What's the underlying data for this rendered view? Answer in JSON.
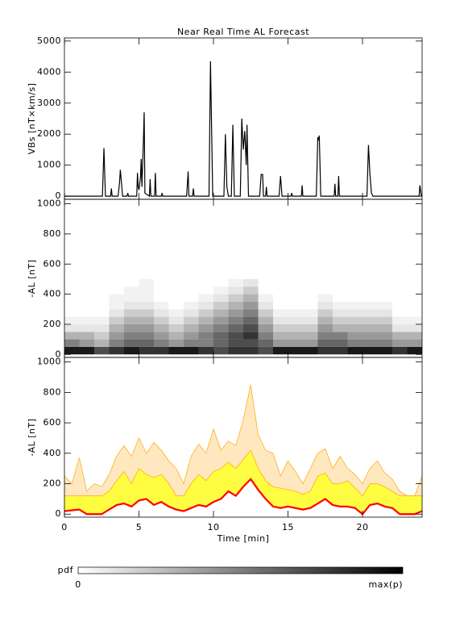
{
  "chart_data": [
    {
      "type": "line",
      "title": "Near Real Time AL Forecast",
      "ylabel": "VBs [nT×km/s]",
      "color": "#000000",
      "xlim": [
        0,
        24
      ],
      "xticks": [
        0,
        5,
        10,
        15,
        20
      ],
      "show_xtick_labels": false,
      "ylim": [
        -100,
        5100
      ],
      "yticks": [
        0,
        1000,
        2000,
        3000,
        4000,
        5000
      ],
      "x": [
        0,
        2.55,
        2.65,
        2.75,
        3.1,
        3.15,
        3.2,
        3.6,
        3.7,
        3.75,
        3.85,
        3.9,
        4.2,
        4.25,
        4.3,
        4.85,
        4.9,
        4.95,
        5.0,
        5.1,
        5.15,
        5.2,
        5.3,
        5.35,
        5.4,
        5.7,
        5.75,
        5.8,
        6.05,
        6.1,
        6.15,
        6.5,
        6.55,
        6.6,
        8.2,
        8.3,
        8.35,
        8.6,
        8.65,
        8.7,
        9.7,
        9.8,
        9.95,
        10.7,
        10.8,
        10.9,
        11.0,
        11.2,
        11.3,
        11.4,
        11.8,
        11.9,
        12.0,
        12.1,
        12.2,
        12.25,
        12.35,
        13.1,
        13.2,
        13.3,
        13.35,
        13.5,
        13.55,
        13.6,
        14.4,
        14.5,
        14.6,
        15.2,
        15.25,
        15.3,
        15.9,
        15.95,
        16.0,
        16.9,
        17.0,
        17.05,
        17.1,
        17.2,
        18.1,
        18.15,
        18.2,
        18.35,
        18.4,
        18.45,
        20.3,
        20.4,
        20.5,
        20.6,
        20.7,
        23.8,
        23.85,
        23.95,
        24
      ],
      "values": [
        0,
        0,
        1550,
        0,
        0,
        250,
        0,
        0,
        450,
        850,
        300,
        0,
        0,
        100,
        0,
        0,
        750,
        300,
        200,
        600,
        1200,
        300,
        1800,
        2700,
        100,
        0,
        550,
        0,
        0,
        750,
        0,
        0,
        100,
        0,
        0,
        800,
        0,
        0,
        250,
        0,
        0,
        4350,
        0,
        0,
        2000,
        300,
        0,
        0,
        2300,
        0,
        0,
        2500,
        1500,
        2100,
        1000,
        2300,
        0,
        0,
        700,
        700,
        0,
        0,
        300,
        0,
        0,
        650,
        0,
        0,
        100,
        0,
        0,
        350,
        0,
        0,
        1900,
        1800,
        1950,
        0,
        0,
        400,
        0,
        0,
        650,
        0,
        0,
        1650,
        700,
        100,
        0,
        0,
        350,
        0,
        0
      ]
    },
    {
      "type": "heatmap",
      "ylabel": "-AL [nT]",
      "xlim": [
        0,
        24
      ],
      "xticks": [
        0,
        5,
        10,
        15,
        20
      ],
      "show_xtick_labels": false,
      "ylim": [
        -20,
        1030
      ],
      "yticks": [
        0,
        200,
        400,
        600,
        800,
        1000
      ],
      "xbins": [
        0,
        1,
        2,
        3,
        4,
        5,
        6,
        7,
        8,
        9,
        10,
        11,
        12,
        13,
        14,
        15,
        16,
        17,
        18,
        19,
        20,
        21,
        22,
        23,
        24
      ],
      "ybins": [
        0,
        50,
        100,
        150,
        200,
        250,
        300,
        350,
        400,
        450,
        500
      ],
      "pdf": [
        [
          0.9,
          0.9,
          0.7,
          0.8,
          0.9,
          0.8,
          0.8,
          0.9,
          0.9,
          0.8,
          0.7,
          0.8,
          0.8,
          0.7,
          0.9,
          0.9,
          0.9,
          0.8,
          0.8,
          0.9,
          0.9,
          0.9,
          0.8,
          0.9
        ],
        [
          0.5,
          0.4,
          0.3,
          0.5,
          0.6,
          0.6,
          0.5,
          0.4,
          0.5,
          0.5,
          0.6,
          0.7,
          0.7,
          0.6,
          0.4,
          0.4,
          0.4,
          0.6,
          0.6,
          0.5,
          0.5,
          0.5,
          0.4,
          0.4
        ],
        [
          0.3,
          0.3,
          0.2,
          0.4,
          0.5,
          0.5,
          0.4,
          0.3,
          0.4,
          0.5,
          0.6,
          0.7,
          0.8,
          0.5,
          0.3,
          0.3,
          0.3,
          0.5,
          0.5,
          0.4,
          0.4,
          0.4,
          0.3,
          0.3
        ],
        [
          0.1,
          0.1,
          0.1,
          0.3,
          0.4,
          0.4,
          0.3,
          0.2,
          0.3,
          0.4,
          0.5,
          0.6,
          0.7,
          0.4,
          0.2,
          0.2,
          0.2,
          0.4,
          0.3,
          0.3,
          0.3,
          0.3,
          0.1,
          0.1
        ],
        [
          0.05,
          0.05,
          0.05,
          0.2,
          0.3,
          0.3,
          0.2,
          0.1,
          0.2,
          0.3,
          0.4,
          0.5,
          0.6,
          0.3,
          0.1,
          0.1,
          0.1,
          0.3,
          0.2,
          0.2,
          0.2,
          0.2,
          0.05,
          0.05
        ],
        [
          0,
          0,
          0,
          0.1,
          0.2,
          0.2,
          0.1,
          0.05,
          0.1,
          0.2,
          0.3,
          0.4,
          0.5,
          0.2,
          0.05,
          0.05,
          0.05,
          0.2,
          0.1,
          0.1,
          0.1,
          0.1,
          0,
          0
        ],
        [
          0,
          0,
          0,
          0.05,
          0.1,
          0.1,
          0.05,
          0,
          0.05,
          0.1,
          0.2,
          0.3,
          0.4,
          0.1,
          0,
          0,
          0,
          0.1,
          0.05,
          0.05,
          0.05,
          0.05,
          0,
          0
        ],
        [
          0,
          0,
          0,
          0.05,
          0.05,
          0.05,
          0,
          0,
          0,
          0.05,
          0.1,
          0.2,
          0.3,
          0.05,
          0,
          0,
          0,
          0.05,
          0,
          0,
          0,
          0,
          0,
          0
        ],
        [
          0,
          0,
          0,
          0,
          0.05,
          0.05,
          0,
          0,
          0,
          0,
          0.05,
          0.1,
          0.2,
          0,
          0,
          0,
          0,
          0,
          0,
          0,
          0,
          0,
          0,
          0
        ],
        [
          0,
          0,
          0,
          0,
          0,
          0.05,
          0,
          0,
          0,
          0,
          0,
          0.05,
          0.1,
          0,
          0,
          0,
          0,
          0,
          0,
          0,
          0,
          0,
          0,
          0
        ]
      ]
    },
    {
      "type": "band",
      "ylabel": "-AL [nT]",
      "xlabel": "Time [min]",
      "xlim": [
        0,
        24
      ],
      "xticks": [
        0,
        5,
        10,
        15,
        20
      ],
      "show_xtick_labels": true,
      "ylim": [
        -20,
        1030
      ],
      "yticks": [
        0,
        200,
        400,
        600,
        800,
        1000
      ],
      "x": [
        0,
        0.5,
        1,
        1.5,
        2,
        2.5,
        3,
        3.5,
        4,
        4.5,
        5,
        5.5,
        6,
        6.5,
        7,
        7.5,
        8,
        8.5,
        9,
        9.5,
        10,
        10.5,
        11,
        11.5,
        12,
        12.5,
        13,
        13.5,
        14,
        14.5,
        15,
        15.5,
        16,
        16.5,
        17,
        17.5,
        18,
        18.5,
        19,
        19.5,
        20,
        20.5,
        21,
        21.5,
        22,
        22.5,
        23,
        23.5,
        24
      ],
      "series": [
        {
          "color": "#ffa500",
          "values": [
            250,
            200,
            370,
            150,
            200,
            180,
            260,
            380,
            450,
            380,
            500,
            400,
            470,
            420,
            350,
            300,
            200,
            380,
            460,
            400,
            560,
            420,
            480,
            450,
            620,
            850,
            520,
            420,
            400,
            250,
            350,
            280,
            200,
            300,
            400,
            430,
            300,
            380,
            300,
            260,
            200,
            300,
            350,
            270,
            230,
            150,
            120,
            120,
            250
          ]
        },
        {
          "color": "#ffff33",
          "values": [
            120,
            120,
            120,
            120,
            120,
            120,
            150,
            220,
            280,
            200,
            300,
            260,
            240,
            260,
            200,
            120,
            120,
            200,
            260,
            220,
            280,
            300,
            340,
            300,
            360,
            420,
            300,
            220,
            180,
            170,
            160,
            150,
            130,
            150,
            250,
            270,
            200,
            200,
            220,
            170,
            120,
            200,
            200,
            180,
            150,
            120,
            120,
            120,
            120
          ]
        },
        {
          "color": "#ff0000",
          "values": [
            20,
            25,
            30,
            0,
            0,
            0,
            30,
            60,
            70,
            50,
            90,
            100,
            60,
            80,
            50,
            30,
            20,
            40,
            60,
            50,
            80,
            100,
            150,
            120,
            180,
            230,
            160,
            100,
            50,
            40,
            50,
            40,
            30,
            40,
            70,
            100,
            60,
            50,
            50,
            40,
            0,
            60,
            70,
            50,
            40,
            0,
            0,
            0,
            20
          ]
        }
      ]
    }
  ],
  "colorbar": {
    "label": "pdf",
    "min_label": "0",
    "max_label": "max(p)"
  }
}
